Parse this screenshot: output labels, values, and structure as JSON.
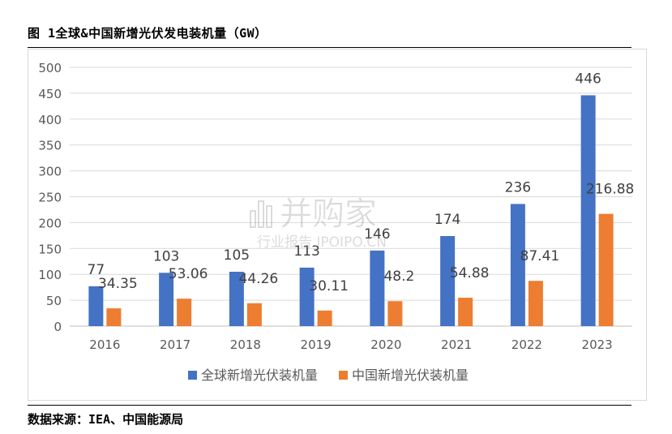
{
  "figure_title": "图 1全球&中国新增光伏发电装机量（GW）",
  "source_note": "数据来源：IEA、中国能源局",
  "watermark": {
    "main": "并购家",
    "sub": "行业报告 IPOIPO.CN"
  },
  "colors": {
    "global": "#4472C4",
    "china": "#ED7D31",
    "grid": "#d9d9d9",
    "text": "#595959"
  },
  "chart_data": {
    "type": "bar",
    "categories": [
      "2016",
      "2017",
      "2018",
      "2019",
      "2020",
      "2021",
      "2022",
      "2023"
    ],
    "series": [
      {
        "name": "全球新增光伏装机量",
        "values": [
          77,
          103,
          105,
          113,
          146,
          174,
          236,
          446
        ],
        "labels": [
          "77",
          "103",
          "105",
          "113",
          "146",
          "174",
          "236",
          "446"
        ]
      },
      {
        "name": "中国新增光伏装机量",
        "values": [
          34.35,
          53.06,
          44.26,
          30.11,
          48.2,
          54.88,
          87.41,
          216.88
        ],
        "labels": [
          "34.35",
          "53.06",
          "44.26",
          "30.11",
          "48.2",
          "54.88",
          "87.41",
          "216.88"
        ]
      }
    ],
    "yticks": [
      "0",
      "50",
      "100",
      "150",
      "200",
      "250",
      "300",
      "350",
      "400",
      "450",
      "500"
    ],
    "ylim": [
      0,
      500
    ],
    "grid": true,
    "legend_position": "bottom"
  }
}
